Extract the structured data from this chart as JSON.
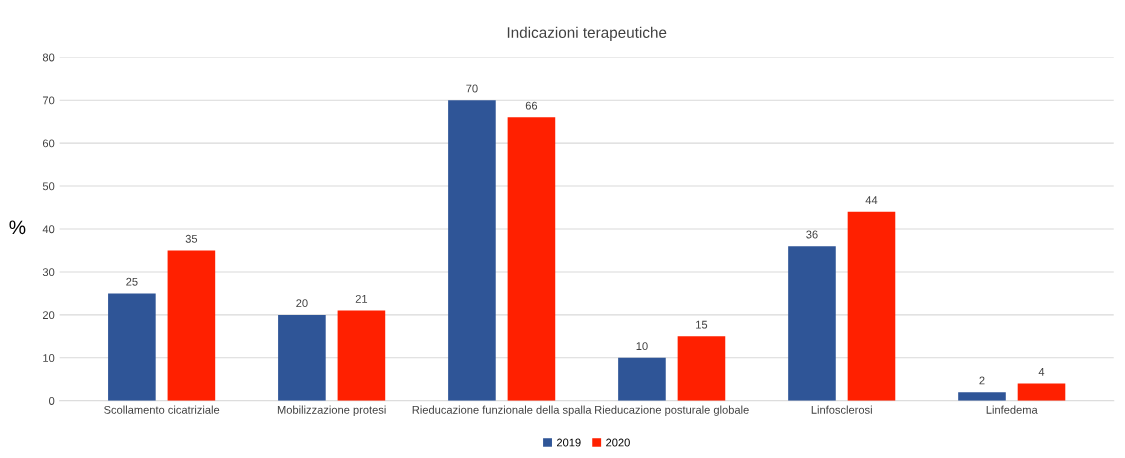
{
  "chart_data": {
    "type": "bar",
    "title": "Indicazioni terapeutiche",
    "ylabel": "%",
    "categories": [
      "Scollamento cicatriziale",
      "Mobilizzazione protesi",
      "Rieducazione funzionale della spalla",
      "Rieducazione posturale globale",
      "Linfosclerosi",
      "Linfedema"
    ],
    "series": [
      {
        "name": "2019",
        "color": "#2f5597",
        "values": [
          25,
          20,
          70,
          10,
          36,
          2
        ]
      },
      {
        "name": "2020",
        "color": "#ff2000",
        "values": [
          35,
          21,
          66,
          15,
          44,
          4
        ]
      }
    ],
    "ylim": [
      0,
      80
    ],
    "yticks": [
      0,
      10,
      20,
      30,
      40,
      50,
      60,
      70,
      80
    ],
    "grid": "y",
    "legend": "bottom",
    "data_labels": true
  }
}
